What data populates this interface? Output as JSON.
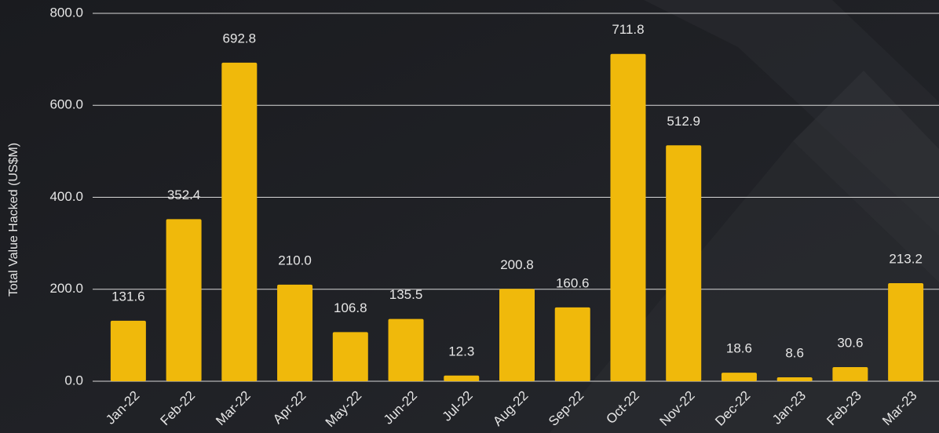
{
  "chart_data": {
    "type": "bar",
    "y_label": "Total Value Hacked (US$M)",
    "categories": [
      "Jan-22",
      "Feb-22",
      "Mar-22",
      "Apr-22",
      "May-22",
      "Jun-22",
      "Jul-22",
      "Aug-22",
      "Sep-22",
      "Oct-22",
      "Nov-22",
      "Dec-22",
      "Jan-23",
      "Feb-23",
      "Mar-23"
    ],
    "values": [
      131.6,
      352.4,
      692.8,
      210.0,
      106.8,
      135.5,
      12.3,
      200.8,
      160.6,
      711.8,
      512.9,
      18.6,
      8.6,
      30.6,
      213.2
    ],
    "value_labels": [
      "131.6",
      "352.4",
      "692.8",
      "210.0",
      "106.8",
      "135.5",
      "12.3",
      "200.8",
      "160.6",
      "711.8",
      "512.9",
      "18.6",
      "8.6",
      "30.6",
      "213.2"
    ],
    "color": "#f0b90b",
    "ylim": [
      0,
      800
    ],
    "yticks": [
      {
        "value": 0,
        "label": "0.0"
      },
      {
        "value": 200,
        "label": "200.0"
      },
      {
        "value": 400,
        "label": "400.0"
      },
      {
        "value": 600,
        "label": "600.0"
      },
      {
        "value": 800,
        "label": "800.0"
      }
    ],
    "grid": true
  }
}
